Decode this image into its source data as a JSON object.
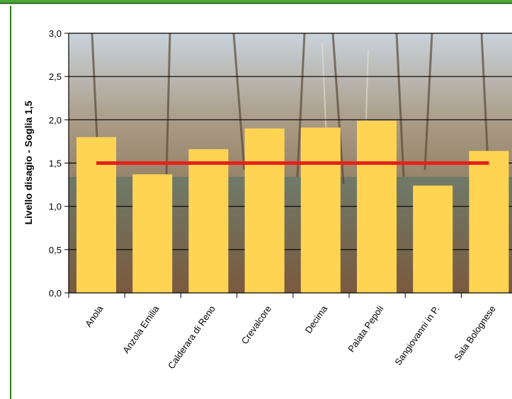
{
  "chart_data": {
    "type": "bar",
    "title": "",
    "xlabel": "",
    "ylabel": "Livello disagio - Soglia 1,5",
    "categories": [
      "Anola",
      "Anzola Emilia",
      "Calderara di Reno",
      "Crevalcore",
      "Decima",
      "Palata Pepoli",
      "Sangiovanni in P.",
      "Sala Bolognese"
    ],
    "series": [
      {
        "values": [
          1.8,
          1.37,
          1.66,
          1.9,
          1.91,
          1.99,
          1.24,
          1.64
        ]
      }
    ],
    "threshold": {
      "value": 1.5,
      "color": "#e8201a"
    },
    "ylim": [
      0,
      3.0
    ],
    "yticks": [
      "0,0",
      "0,5",
      "1,0",
      "1,5",
      "2,0",
      "2,5",
      "3,0"
    ],
    "grid": "horizontal",
    "legend": "none",
    "colors": {
      "bar": "#ffd452",
      "grid": "#000000",
      "frame_top": "#4aa832",
      "frame_left": "#2f7a1e"
    }
  }
}
